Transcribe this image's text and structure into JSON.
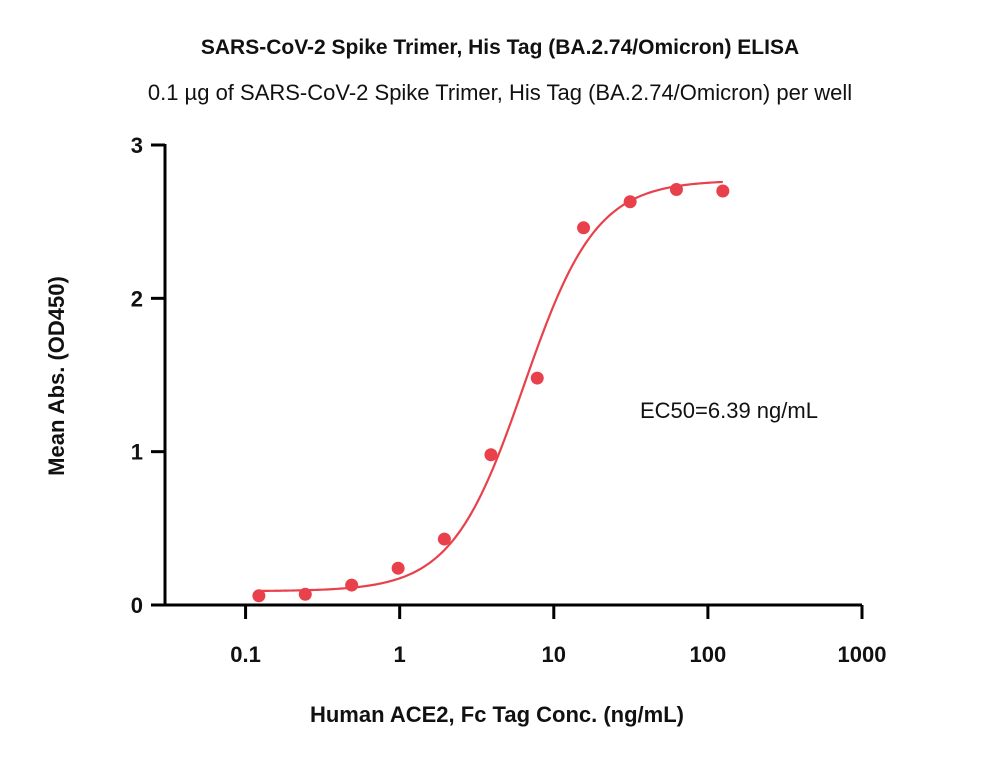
{
  "chart_data": {
    "type": "scatter",
    "title": "SARS-CoV-2 Spike Trimer, His Tag (BA.2.74/Omicron) ELISA",
    "subtitle": "0.1 µg of SARS-CoV-2 Spike Trimer, His Tag (BA.2.74/Omicron) per well",
    "xlabel": "Human ACE2, Fc Tag Conc. (ng/mL)",
    "ylabel": "Mean Abs. (OD450)",
    "x_scale": "log",
    "xlim": [
      0.03,
      1000
    ],
    "ylim": [
      0,
      3
    ],
    "x_ticks": [
      0.1,
      1,
      10,
      100,
      1000
    ],
    "x_tick_labels": [
      "0.1",
      "1",
      "10",
      "100",
      "1000"
    ],
    "y_ticks": [
      0,
      1,
      2,
      3
    ],
    "y_tick_labels": [
      "0",
      "1",
      "2",
      "3"
    ],
    "grid": false,
    "series": [
      {
        "color": "#e8414b",
        "x": [
          0.122,
          0.244,
          0.488,
          0.977,
          1.95,
          3.91,
          7.81,
          15.6,
          31.3,
          62.5,
          125
        ],
        "y": [
          0.06,
          0.07,
          0.13,
          0.24,
          0.43,
          0.98,
          1.48,
          2.46,
          2.63,
          2.71,
          2.7
        ]
      }
    ],
    "fit": {
      "type": "4PL",
      "color": "#e8414b",
      "bottom": 0.09,
      "top": 2.77,
      "ec50": 6.39,
      "hill": 1.85,
      "x_range": [
        0.122,
        125
      ]
    },
    "annotations": [
      {
        "text": "EC50=6.39 ng/mL"
      }
    ]
  }
}
